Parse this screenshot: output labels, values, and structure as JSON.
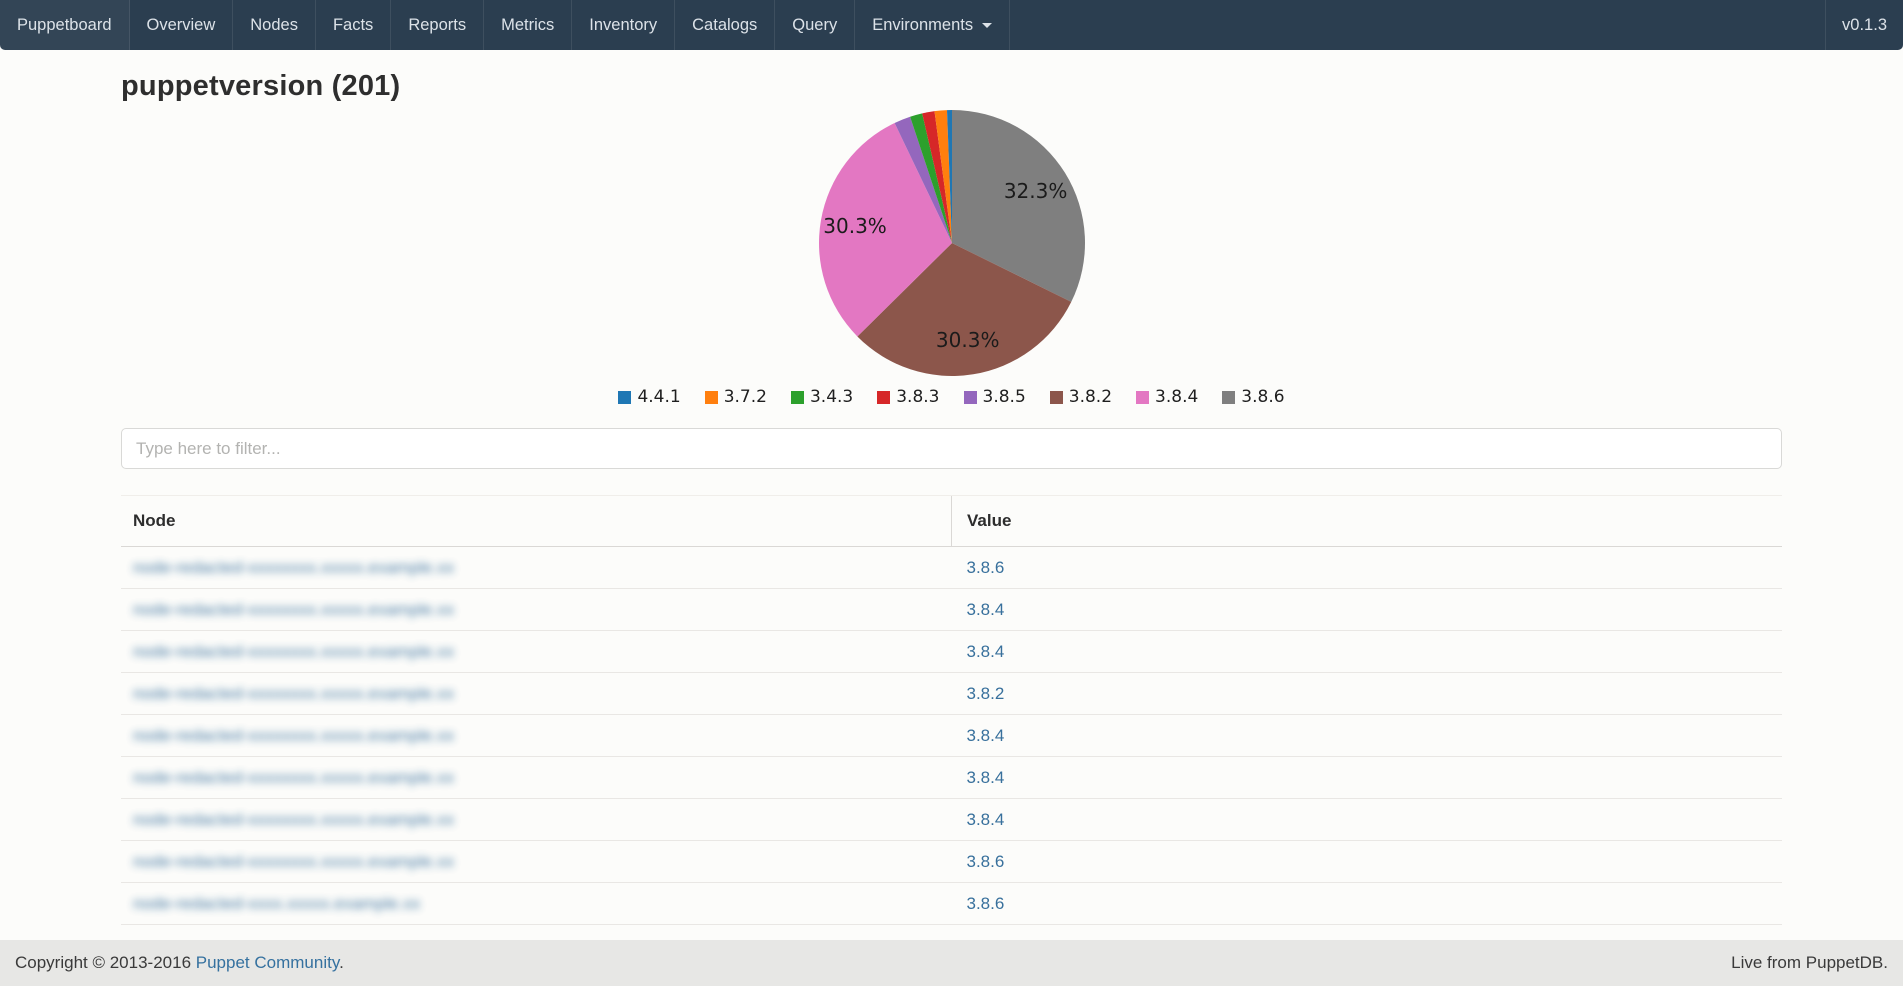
{
  "nav": {
    "items": [
      {
        "label": "Puppetboard",
        "dropdown": false
      },
      {
        "label": "Overview",
        "dropdown": false
      },
      {
        "label": "Nodes",
        "dropdown": false
      },
      {
        "label": "Facts",
        "dropdown": false
      },
      {
        "label": "Reports",
        "dropdown": false
      },
      {
        "label": "Metrics",
        "dropdown": false
      },
      {
        "label": "Inventory",
        "dropdown": false
      },
      {
        "label": "Catalogs",
        "dropdown": false
      },
      {
        "label": "Query",
        "dropdown": false
      },
      {
        "label": "Environments",
        "dropdown": true
      }
    ],
    "version": "v0.1.3"
  },
  "page": {
    "title": "puppetversion (201)",
    "fact_name": "puppetversion",
    "node_count": "201"
  },
  "chart_data": {
    "type": "pie",
    "title": "puppetversion",
    "total_nodes": 201,
    "start": "top",
    "direction": "clockwise",
    "slices": [
      {
        "label": "3.8.6",
        "pct": 32.3,
        "color": "#7f7f7f",
        "pct_label": "32.3%"
      },
      {
        "label": "3.8.2",
        "pct": 30.3,
        "color": "#8c564b",
        "pct_label": "30.3%"
      },
      {
        "label": "3.8.4",
        "pct": 30.3,
        "color": "#e377c2",
        "pct_label": "30.3%"
      },
      {
        "label": "3.8.5",
        "pct": 2.0,
        "color": "#9467bd",
        "pct_label": ""
      },
      {
        "label": "3.4.3",
        "pct": 1.5,
        "color": "#2ca02c",
        "pct_label": ""
      },
      {
        "label": "3.8.3",
        "pct": 1.5,
        "color": "#d62728",
        "pct_label": ""
      },
      {
        "label": "3.7.2",
        "pct": 1.5,
        "color": "#ff7f0e",
        "pct_label": ""
      },
      {
        "label": "4.4.1",
        "pct": 0.6,
        "color": "#1f77b4",
        "pct_label": ""
      }
    ],
    "legend": [
      {
        "label": "4.4.1",
        "color": "#1f77b4"
      },
      {
        "label": "3.7.2",
        "color": "#ff7f0e"
      },
      {
        "label": "3.4.3",
        "color": "#2ca02c"
      },
      {
        "label": "3.8.3",
        "color": "#d62728"
      },
      {
        "label": "3.8.5",
        "color": "#9467bd"
      },
      {
        "label": "3.8.2",
        "color": "#8c564b"
      },
      {
        "label": "3.8.4",
        "color": "#e377c2"
      },
      {
        "label": "3.8.6",
        "color": "#7f7f7f"
      }
    ],
    "legend_position": "bottom"
  },
  "filter": {
    "placeholder": "Type here to filter..."
  },
  "table": {
    "columns": [
      "Node",
      "Value"
    ],
    "rows": [
      {
        "node": "node-redacted-xxxxxxxx.xxxxx.example.xx",
        "redacted": true,
        "value": "3.8.6"
      },
      {
        "node": "node-redacted-xxxxxxxx.xxxxx.example.xx",
        "redacted": true,
        "value": "3.8.4"
      },
      {
        "node": "node-redacted-xxxxxxxx.xxxxx.example.xx",
        "redacted": true,
        "value": "3.8.4"
      },
      {
        "node": "node-redacted-xxxxxxxx.xxxxx.example.xx",
        "redacted": true,
        "value": "3.8.2"
      },
      {
        "node": "node-redacted-xxxxxxxx.xxxxx.example.xx",
        "redacted": true,
        "value": "3.8.4"
      },
      {
        "node": "node-redacted-xxxxxxxx.xxxxx.example.xx",
        "redacted": true,
        "value": "3.8.4"
      },
      {
        "node": "node-redacted-xxxxxxxx.xxxxx.example.xx",
        "redacted": true,
        "value": "3.8.4"
      },
      {
        "node": "node-redacted-xxxxxxxx.xxxxx.example.xx",
        "redacted": true,
        "value": "3.8.6"
      },
      {
        "node": "node-redacted-xxxx.xxxxx.example.xx",
        "redacted": true,
        "value": "3.8.6"
      }
    ]
  },
  "footer": {
    "copyright_prefix": "Copyright © 2013-2016 ",
    "community_link": "Puppet Community",
    "copyright_suffix": ".",
    "live_text": "Live from PuppetDB."
  },
  "colors": {
    "navbar_bg": "#2b3e50",
    "navbar_text": "#dce2e8",
    "page_bg": "#fcfcfa",
    "link_blue": "#38709c",
    "footer_bg": "#e7e7e5"
  }
}
